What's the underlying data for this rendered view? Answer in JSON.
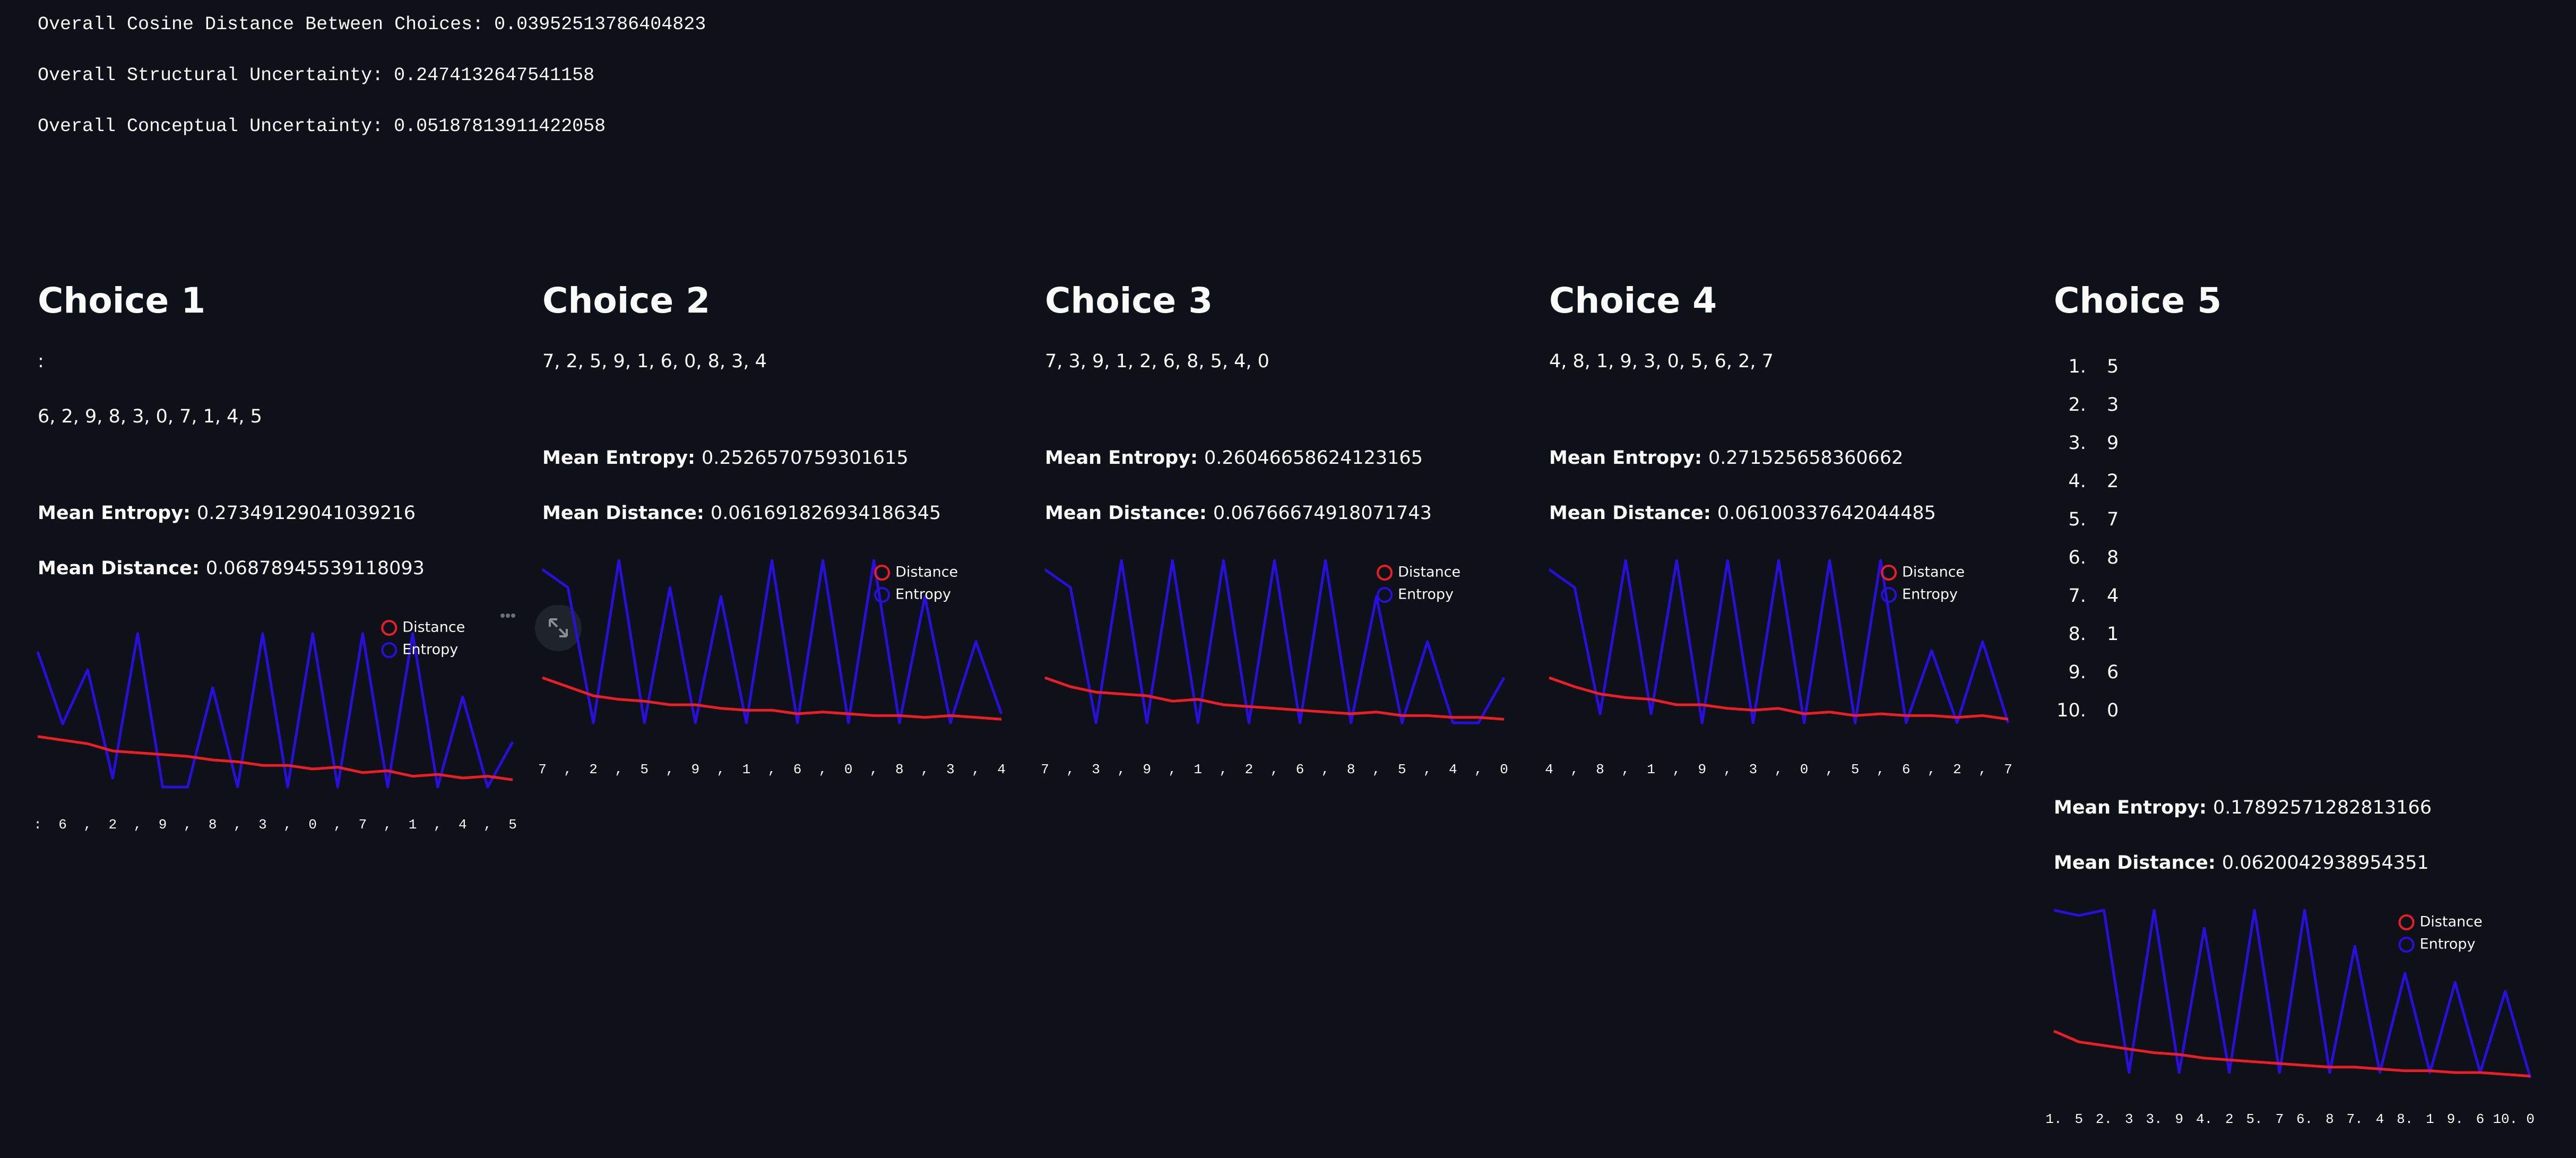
{
  "summary": [
    {
      "label": "Overall Cosine Distance Between Choices:",
      "value": "0.03952513786404823"
    },
    {
      "label": "Overall Structural Uncertainty:",
      "value": "0.2474132647541158"
    },
    {
      "label": "Overall Conceptual Uncertainty:",
      "value": "0.05187813911422058"
    }
  ],
  "choices": [
    {
      "title": "Choice 1",
      "lines": [
        ":",
        "6, 2, 9, 8, 3, 0, 7, 1, 4, 5"
      ],
      "mean_entropy": {
        "label": "Mean Entropy:",
        "value": "0.27349129041039216"
      },
      "mean_distance": {
        "label": "Mean Distance:",
        "value": "0.06878945539118093"
      }
    },
    {
      "title": "Choice 2",
      "lines": [
        "7, 2, 5, 9, 1, 6, 0, 8, 3, 4"
      ],
      "mean_entropy": {
        "label": "Mean Entropy:",
        "value": "0.2526570759301615"
      },
      "mean_distance": {
        "label": "Mean Distance:",
        "value": "0.061691826934186345"
      }
    },
    {
      "title": "Choice 3",
      "lines": [
        "7, 3, 9, 1, 2, 6, 8, 5, 4, 0"
      ],
      "mean_entropy": {
        "label": "Mean Entropy:",
        "value": "0.26046658624123165"
      },
      "mean_distance": {
        "label": "Mean Distance:",
        "value": "0.06766674918071743"
      }
    },
    {
      "title": "Choice 4",
      "lines": [
        "4, 8, 1, 9, 3, 0, 5, 6, 2, 7"
      ],
      "mean_entropy": {
        "label": "Mean Entropy:",
        "value": "0.271525658360662"
      },
      "mean_distance": {
        "label": "Mean Distance:",
        "value": "0.06100337642044485"
      }
    },
    {
      "title": "Choice 5",
      "items": [
        "5",
        "3",
        "9",
        "2",
        "7",
        "8",
        "4",
        "1",
        "6",
        "0"
      ],
      "mean_entropy": {
        "label": "Mean Entropy:",
        "value": "0.17892571282813166"
      },
      "mean_distance": {
        "label": "Mean Distance:",
        "value": "0.0620042938954351"
      }
    }
  ],
  "chart_data": [
    {
      "type": "line",
      "categories": [
        ":",
        "6",
        ",",
        "2",
        ",",
        "9",
        ",",
        "8",
        ",",
        "3",
        ",",
        "0",
        ",",
        "7",
        ",",
        "1",
        ",",
        "4",
        ",",
        "5"
      ],
      "ylim": [
        0,
        1
      ],
      "series": [
        {
          "name": "Distance",
          "color": "#ee1c25",
          "values": [
            0.28,
            0.26,
            0.24,
            0.2,
            0.19,
            0.18,
            0.17,
            0.15,
            0.14,
            0.12,
            0.12,
            0.1,
            0.11,
            0.08,
            0.09,
            0.06,
            0.07,
            0.05,
            0.06,
            0.04
          ]
        },
        {
          "name": "Entropy",
          "color": "#2a0ee0",
          "values": [
            0.75,
            0.35,
            0.65,
            0.05,
            0.85,
            0,
            0,
            0.55,
            0,
            0.85,
            0,
            0.85,
            0,
            0.85,
            0,
            0.85,
            0,
            0.5,
            0,
            0.25
          ]
        }
      ]
    },
    {
      "type": "line",
      "categories": [
        "7",
        ",",
        "2",
        ",",
        "5",
        ",",
        "9",
        ",",
        "1",
        ",",
        "6",
        ",",
        "0",
        ",",
        "8",
        ",",
        "3",
        ",",
        "4"
      ],
      "ylim": [
        0,
        1
      ],
      "series": [
        {
          "name": "Distance",
          "color": "#ee1c25",
          "values": [
            0.3,
            0.25,
            0.2,
            0.18,
            0.17,
            0.15,
            0.15,
            0.13,
            0.12,
            0.12,
            0.1,
            0.11,
            0.1,
            0.09,
            0.09,
            0.08,
            0.09,
            0.08,
            0.07
          ]
        },
        {
          "name": "Entropy",
          "color": "#2a0ee0",
          "values": [
            0.9,
            0.8,
            0.05,
            0.95,
            0.05,
            0.8,
            0.05,
            0.75,
            0.05,
            0.95,
            0.05,
            0.95,
            0.05,
            0.95,
            0.05,
            0.75,
            0.05,
            0.5,
            0.1
          ]
        }
      ]
    },
    {
      "type": "line",
      "categories": [
        "7",
        ",",
        "3",
        ",",
        "9",
        ",",
        "1",
        ",",
        "2",
        ",",
        "6",
        ",",
        "8",
        ",",
        "5",
        ",",
        "4",
        ",",
        "0"
      ],
      "ylim": [
        0,
        1
      ],
      "series": [
        {
          "name": "Distance",
          "color": "#ee1c25",
          "values": [
            0.3,
            0.25,
            0.22,
            0.21,
            0.2,
            0.17,
            0.18,
            0.15,
            0.14,
            0.13,
            0.12,
            0.11,
            0.1,
            0.11,
            0.09,
            0.09,
            0.08,
            0.08,
            0.07
          ]
        },
        {
          "name": "Entropy",
          "color": "#2a0ee0",
          "values": [
            0.9,
            0.8,
            0.05,
            0.95,
            0.05,
            0.95,
            0.05,
            0.95,
            0.05,
            0.95,
            0.05,
            0.95,
            0.05,
            0.75,
            0.05,
            0.5,
            0.05,
            0.05,
            0.3
          ]
        }
      ]
    },
    {
      "type": "line",
      "categories": [
        "4",
        ",",
        "8",
        ",",
        "1",
        ",",
        "9",
        ",",
        "3",
        ",",
        "0",
        ",",
        "5",
        ",",
        "6",
        ",",
        "2",
        ",",
        "7"
      ],
      "ylim": [
        0,
        1
      ],
      "series": [
        {
          "name": "Distance",
          "color": "#ee1c25",
          "values": [
            0.3,
            0.25,
            0.21,
            0.19,
            0.18,
            0.15,
            0.15,
            0.13,
            0.12,
            0.13,
            0.1,
            0.11,
            0.09,
            0.1,
            0.09,
            0.09,
            0.08,
            0.09,
            0.07
          ]
        },
        {
          "name": "Entropy",
          "color": "#2a0ee0",
          "values": [
            0.9,
            0.8,
            0.1,
            0.95,
            0.1,
            0.95,
            0.05,
            0.95,
            0.05,
            0.95,
            0.05,
            0.95,
            0.05,
            0.95,
            0.05,
            0.45,
            0.05,
            0.5,
            0.05
          ]
        }
      ]
    },
    {
      "type": "line",
      "categories": [
        "1.",
        "5",
        "2.",
        "3",
        "3.",
        "9",
        "4.",
        "2",
        "5.",
        "7",
        "6.",
        "8",
        "7.",
        "4",
        "8.",
        "1",
        "9.",
        "6",
        "10.",
        "0"
      ],
      "ylim": [
        0,
        1
      ],
      "series": [
        {
          "name": "Distance",
          "color": "#ee1c25",
          "values": [
            0.28,
            0.22,
            0.2,
            0.18,
            0.16,
            0.15,
            0.13,
            0.12,
            0.11,
            0.1,
            0.09,
            0.08,
            0.08,
            0.07,
            0.06,
            0.06,
            0.05,
            0.05,
            0.04,
            0.03
          ]
        },
        {
          "name": "Entropy",
          "color": "#2a0ee0",
          "values": [
            0.95,
            0.92,
            0.95,
            0.05,
            0.95,
            0.05,
            0.85,
            0.05,
            0.95,
            0.05,
            0.95,
            0.05,
            0.75,
            0.05,
            0.6,
            0.05,
            0.55,
            0.05,
            0.5,
            0.02
          ]
        }
      ]
    }
  ]
}
